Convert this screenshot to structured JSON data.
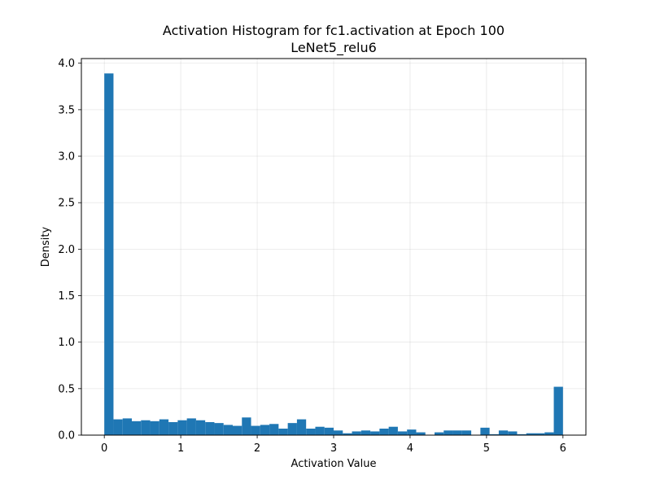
{
  "chart_data": {
    "type": "bar",
    "title": "Activation Histogram for fc1.activation at Epoch 100",
    "subtitle": "LeNet5_relu6",
    "xlabel": "Activation Value",
    "ylabel": "Density",
    "xlim": [
      -0.3,
      6.3
    ],
    "ylim": [
      0,
      4.05
    ],
    "grid": true,
    "bar_color": "#1f77b4",
    "x_ticks": [
      "0",
      "1",
      "2",
      "3",
      "4",
      "5",
      "6"
    ],
    "y_ticks": [
      "0.0",
      "0.5",
      "1.0",
      "1.5",
      "2.0",
      "2.5",
      "3.0",
      "3.5",
      "4.0"
    ],
    "bin_edges": [
      0.0,
      0.12,
      0.24,
      0.36,
      0.48,
      0.6,
      0.72,
      0.84,
      0.96,
      1.08,
      1.2,
      1.32,
      1.44,
      1.56,
      1.68,
      1.8,
      1.92,
      2.04,
      2.16,
      2.28,
      2.4,
      2.52,
      2.64,
      2.76,
      2.88,
      3.0,
      3.12,
      3.24,
      3.36,
      3.48,
      3.6,
      3.72,
      3.84,
      3.96,
      4.08,
      4.2,
      4.32,
      4.44,
      4.56,
      4.68,
      4.8,
      4.92,
      5.04,
      5.16,
      5.28,
      5.4,
      5.52,
      5.64,
      5.76,
      5.88,
      6.0
    ],
    "values": [
      3.89,
      0.17,
      0.18,
      0.15,
      0.16,
      0.15,
      0.17,
      0.14,
      0.16,
      0.18,
      0.16,
      0.14,
      0.13,
      0.11,
      0.1,
      0.19,
      0.1,
      0.11,
      0.12,
      0.07,
      0.13,
      0.17,
      0.07,
      0.09,
      0.08,
      0.05,
      0.02,
      0.04,
      0.05,
      0.04,
      0.07,
      0.09,
      0.04,
      0.06,
      0.03,
      0.0,
      0.03,
      0.05,
      0.05,
      0.05,
      0.0,
      0.08,
      0.01,
      0.05,
      0.04,
      0.01,
      0.02,
      0.02,
      0.03,
      0.52
    ]
  }
}
